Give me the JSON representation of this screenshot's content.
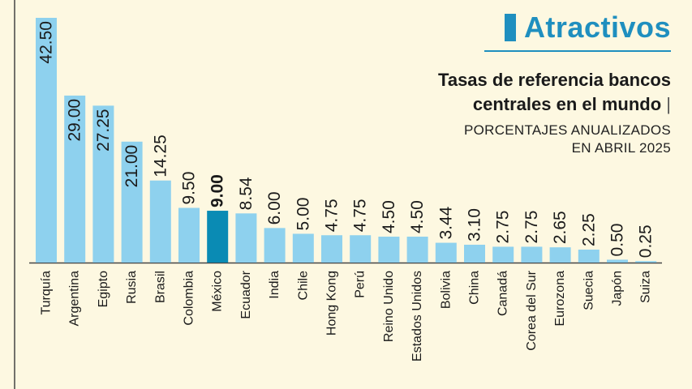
{
  "header": {
    "section": "Atractivos"
  },
  "colors": {
    "background": "#fdf8e1",
    "bar": "#8ed1ee",
    "highlight": "#0a8bb4",
    "accent": "#1f8fbf",
    "axis": "#444444",
    "text": "#1a1a1a"
  },
  "chart_data": {
    "type": "bar",
    "title": "Tasas de referencia bancos centrales en el mundo",
    "title_line1": "Tasas de referencia bancos",
    "title_line2": "centrales en el mundo",
    "title_separator": "|",
    "subtitle_line1": "PORCENTAJES ANUALIZADOS",
    "subtitle_line2": "EN ABRIL 2025",
    "xlabel": "",
    "ylabel": "",
    "ylim": [
      0,
      42.5
    ],
    "highlight": "México",
    "categories": [
      "Turquía",
      "Argentina",
      "Egipto",
      "Rusia",
      "Brasil",
      "Colombia",
      "México",
      "Ecuador",
      "India",
      "Chile",
      "Hong Kong",
      "Perú",
      "Reino Unido",
      "Estados Unidos",
      "Bolivia",
      "China",
      "Canadá",
      "Corea del Sur",
      "Eurozona",
      "Suecia",
      "Japón",
      "Suiza"
    ],
    "values": [
      42.5,
      29.0,
      27.25,
      21.0,
      14.25,
      9.5,
      9.0,
      8.54,
      6.0,
      5.0,
      4.75,
      4.75,
      4.5,
      4.5,
      3.44,
      3.1,
      2.75,
      2.75,
      2.65,
      2.25,
      0.5,
      0.25
    ],
    "value_labels": [
      "42.50",
      "29.00",
      "27.25",
      "21.00",
      "14.25",
      "9.50",
      "9.00",
      "8.54",
      "6.00",
      "5.00",
      "4.75",
      "4.75",
      "4.50",
      "4.50",
      "3.44",
      "3.10",
      "2.75",
      "2.75",
      "2.65",
      "2.25",
      "0.50",
      "0.25"
    ]
  }
}
